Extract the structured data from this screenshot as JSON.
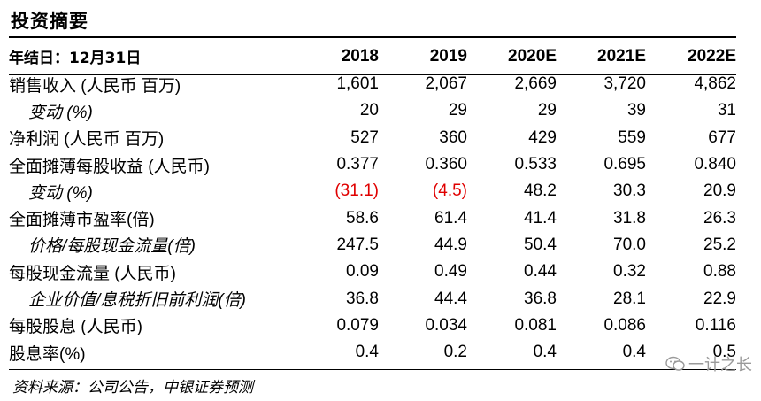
{
  "title": "投资摘要",
  "header": {
    "label": "年结日：12月31日",
    "years": [
      "2018",
      "2019",
      "2020E",
      "2021E",
      "2022E"
    ]
  },
  "rows": [
    {
      "label": "销售收入 (人民币 百万)",
      "sub": false,
      "values": [
        "1,601",
        "2,067",
        "2,669",
        "3,720",
        "4,862"
      ],
      "negative": [
        false,
        false,
        false,
        false,
        false
      ]
    },
    {
      "label": "变动 (%)",
      "sub": true,
      "values": [
        "20",
        "29",
        "29",
        "39",
        "31"
      ],
      "negative": [
        false,
        false,
        false,
        false,
        false
      ]
    },
    {
      "label": "净利润 (人民币 百万)",
      "sub": false,
      "values": [
        "527",
        "360",
        "429",
        "559",
        "677"
      ],
      "negative": [
        false,
        false,
        false,
        false,
        false
      ]
    },
    {
      "label": "全面摊薄每股收益 (人民币)",
      "sub": false,
      "values": [
        "0.377",
        "0.360",
        "0.533",
        "0.695",
        "0.840"
      ],
      "negative": [
        false,
        false,
        false,
        false,
        false
      ]
    },
    {
      "label": "变动 (%)",
      "sub": true,
      "values": [
        "(31.1)",
        "(4.5)",
        "48.2",
        "30.3",
        "20.9"
      ],
      "negative": [
        true,
        true,
        false,
        false,
        false
      ]
    },
    {
      "label": "全面摊薄市盈率(倍)",
      "sub": false,
      "values": [
        "58.6",
        "61.4",
        "41.4",
        "31.8",
        "26.3"
      ],
      "negative": [
        false,
        false,
        false,
        false,
        false
      ]
    },
    {
      "label": "价格/每股现金流量(倍)",
      "sub": true,
      "values": [
        "247.5",
        "44.9",
        "50.4",
        "70.0",
        "25.2"
      ],
      "negative": [
        false,
        false,
        false,
        false,
        false
      ]
    },
    {
      "label": "每股现金流量 (人民币)",
      "sub": false,
      "values": [
        "0.09",
        "0.49",
        "0.44",
        "0.32",
        "0.88"
      ],
      "negative": [
        false,
        false,
        false,
        false,
        false
      ]
    },
    {
      "label": "企业价值/息税折旧前利润(倍)",
      "sub": true,
      "values": [
        "36.8",
        "44.4",
        "36.8",
        "28.1",
        "22.9"
      ],
      "negative": [
        false,
        false,
        false,
        false,
        false
      ]
    },
    {
      "label": "每股股息 (人民币)",
      "sub": false,
      "values": [
        "0.079",
        "0.034",
        "0.081",
        "0.086",
        "0.116"
      ],
      "negative": [
        false,
        false,
        false,
        false,
        false
      ]
    },
    {
      "label": "股息率(%)",
      "sub": false,
      "values": [
        "0.4",
        "0.2",
        "0.4",
        "0.4",
        "0.5"
      ],
      "negative": [
        false,
        false,
        false,
        false,
        false
      ]
    }
  ],
  "source": "资料来源：公司公告，中银证券预测",
  "watermark": "一计之长",
  "colors": {
    "negative": "#e00000",
    "rule": "#000000",
    "watermark": "#9a9a9a"
  }
}
